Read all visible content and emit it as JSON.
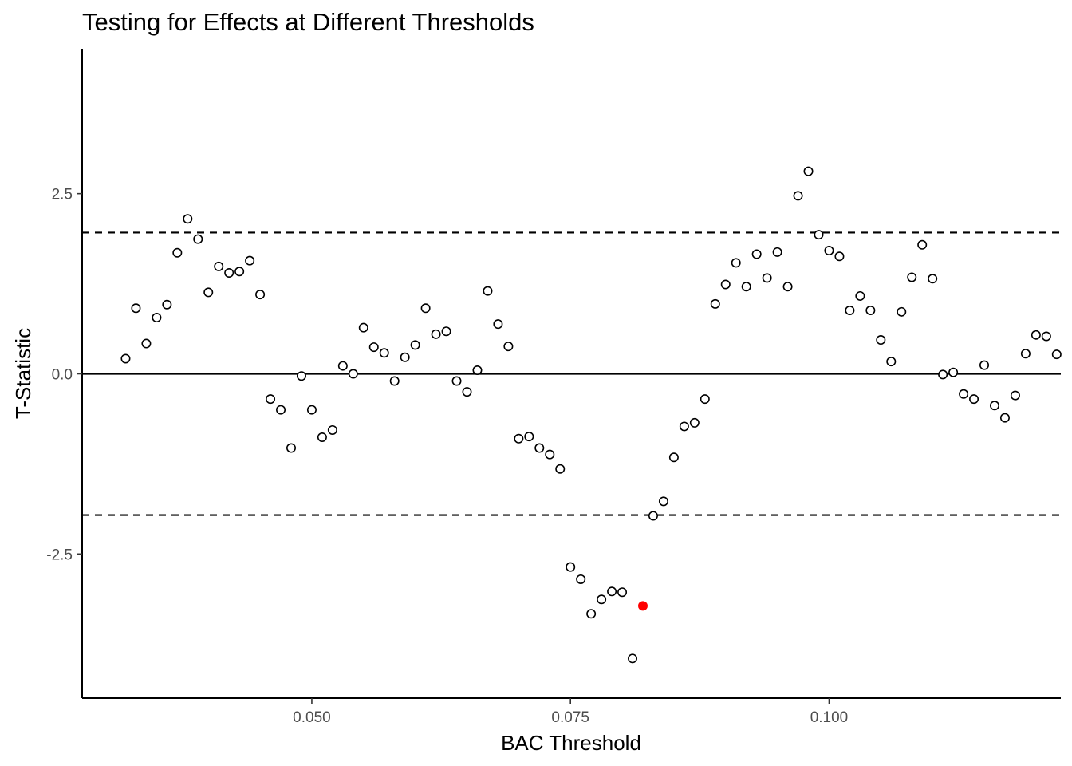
{
  "chart_data": {
    "type": "scatter",
    "title": "Testing for Effects at Different Thresholds",
    "xlabel": "BAC Threshold",
    "ylabel": "T-Statistic",
    "xlim": [
      0.0278,
      0.1224
    ],
    "ylim": [
      -4.5,
      4.5
    ],
    "x_ticks": [
      {
        "value": 0.05,
        "label": "0.050"
      },
      {
        "value": 0.075,
        "label": "0.075"
      },
      {
        "value": 0.1,
        "label": "0.100"
      }
    ],
    "y_ticks": [
      {
        "value": 2.5,
        "label": "2.5"
      },
      {
        "value": 0.0,
        "label": "0.0"
      },
      {
        "value": -2.5,
        "label": "-2.5"
      }
    ],
    "reference_lines": [
      {
        "orientation": "horizontal",
        "y": 1.96,
        "style": "dashed"
      },
      {
        "orientation": "horizontal",
        "y": 0.0,
        "style": "solid"
      },
      {
        "orientation": "horizontal",
        "y": -1.96,
        "style": "dashed"
      }
    ],
    "grid": false,
    "highlight_color": "#ff0000",
    "series": [
      {
        "x": [
          0.032,
          0.033,
          0.034,
          0.035,
          0.036,
          0.037,
          0.038,
          0.039,
          0.04,
          0.041,
          0.042,
          0.043,
          0.044,
          0.045,
          0.046,
          0.047,
          0.048,
          0.049,
          0.05,
          0.051,
          0.052,
          0.053,
          0.054,
          0.055,
          0.056,
          0.057,
          0.058,
          0.059,
          0.06,
          0.061,
          0.062,
          0.063,
          0.064,
          0.065,
          0.066,
          0.067,
          0.068,
          0.069,
          0.07,
          0.071,
          0.072,
          0.073,
          0.074,
          0.075,
          0.076,
          0.077,
          0.078,
          0.079,
          0.08,
          0.081,
          0.082,
          0.083,
          0.084,
          0.085,
          0.086,
          0.087,
          0.088,
          0.089,
          0.09,
          0.091,
          0.092,
          0.093,
          0.094,
          0.095,
          0.096,
          0.097,
          0.098,
          0.099,
          0.1,
          0.101,
          0.102,
          0.103,
          0.104,
          0.105,
          0.106,
          0.107,
          0.108,
          0.109,
          0.11,
          0.111,
          0.112,
          0.113,
          0.114,
          0.115,
          0.116,
          0.117,
          0.118,
          0.119,
          0.12,
          0.121,
          0.122
        ],
        "y": [
          0.21,
          0.91,
          0.42,
          0.78,
          0.96,
          1.68,
          2.15,
          1.87,
          1.13,
          1.49,
          1.4,
          1.42,
          1.57,
          1.1,
          -0.35,
          -0.5,
          -1.03,
          -0.03,
          -0.5,
          -0.88,
          -0.78,
          0.11,
          0.0,
          0.64,
          0.37,
          0.29,
          -0.1,
          0.23,
          0.4,
          0.91,
          0.55,
          0.59,
          -0.1,
          -0.25,
          0.05,
          1.15,
          0.69,
          0.38,
          -0.9,
          -0.87,
          -1.03,
          -1.12,
          -1.32,
          -2.68,
          -2.85,
          -3.33,
          -3.13,
          -3.02,
          -3.03,
          -3.95,
          -3.22,
          -1.97,
          -1.77,
          -1.16,
          -0.73,
          -0.68,
          -0.35,
          0.97,
          1.24,
          1.54,
          1.21,
          1.66,
          1.33,
          1.69,
          1.21,
          2.47,
          2.81,
          1.93,
          1.71,
          1.63,
          0.88,
          1.08,
          0.88,
          0.47,
          0.17,
          0.86,
          1.34,
          1.79,
          1.32,
          -0.01,
          0.02,
          -0.28,
          -0.35,
          0.12,
          -0.44,
          -0.61,
          -0.3,
          0.28,
          0.54,
          0.52,
          0.27
        ],
        "highlight": [
          false,
          false,
          false,
          false,
          false,
          false,
          false,
          false,
          false,
          false,
          false,
          false,
          false,
          false,
          false,
          false,
          false,
          false,
          false,
          false,
          false,
          false,
          false,
          false,
          false,
          false,
          false,
          false,
          false,
          false,
          false,
          false,
          false,
          false,
          false,
          false,
          false,
          false,
          false,
          false,
          false,
          false,
          false,
          false,
          false,
          false,
          false,
          false,
          false,
          false,
          true,
          false,
          false,
          false,
          false,
          false,
          false,
          false,
          false,
          false,
          false,
          false,
          false,
          false,
          false,
          false,
          false,
          false,
          false,
          false,
          false,
          false,
          false,
          false,
          false,
          false,
          false,
          false,
          false,
          false,
          false,
          false,
          false,
          false,
          false,
          false,
          false,
          false,
          false,
          false,
          false
        ]
      }
    ]
  }
}
